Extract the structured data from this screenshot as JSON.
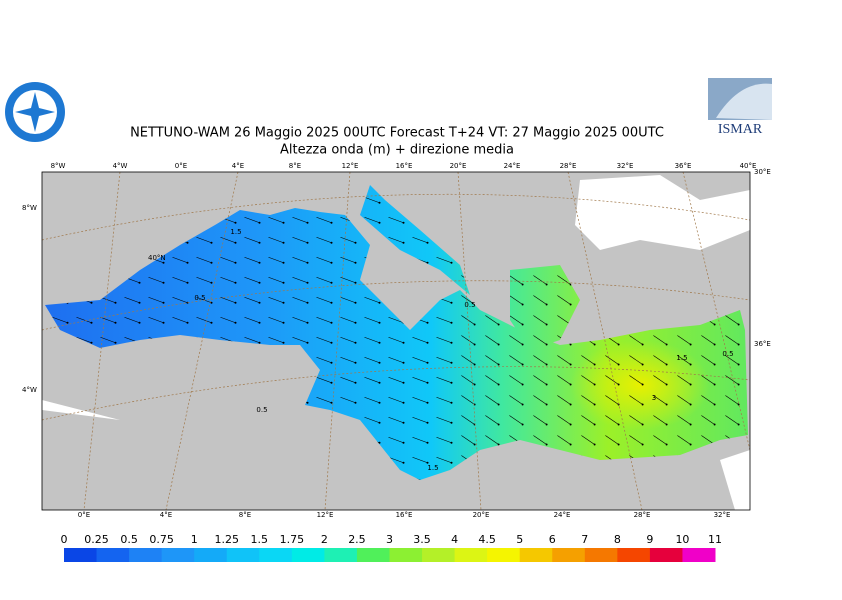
{
  "header": {
    "title": "NETTUNO-WAM  26   Maggio  2025 00UTC Forecast T+24 VT: 27   Maggio  2025 00UTC",
    "subtitle": "Altezza onda (m) + direzione media",
    "logo_text": "ISMAR"
  },
  "map": {
    "top_labels": [
      "8°W",
      "4°W",
      "0°E",
      "4°E",
      "8°E",
      "12°E",
      "16°E",
      "20°E",
      "24°E",
      "28°E",
      "32°E",
      "36°E",
      "40°E"
    ],
    "bottom_labels": [
      "0°E",
      "4°E",
      "8°E",
      "12°E",
      "16°E",
      "20°E",
      "24°E",
      "28°E",
      "32°E"
    ],
    "left_labels": [
      "8°W",
      "40°N",
      "4°W"
    ],
    "right_labels": [
      "30°E",
      "36°E"
    ],
    "contour_labels": [
      1.5,
      0.5,
      0.5,
      1.5,
      3,
      1.5,
      0.5,
      0.5
    ]
  },
  "colorbar": {
    "levels": [
      0,
      0.25,
      0.5,
      0.75,
      1,
      1.25,
      1.5,
      1.75,
      2,
      2.5,
      3,
      3.5,
      4,
      4.5,
      5,
      6,
      7,
      8,
      9,
      10,
      11
    ],
    "colors": [
      "#0a46e6",
      "#1464f0",
      "#1e82f5",
      "#1e96f8",
      "#14aaf8",
      "#10c3f8",
      "#0ad7f5",
      "#00ebe6",
      "#1ef0b4",
      "#50f05a",
      "#8cf032",
      "#b4f028",
      "#dcf514",
      "#f5f500",
      "#f5c800",
      "#f5a000",
      "#f57800",
      "#f54600",
      "#e6003c",
      "#f000c8"
    ]
  }
}
